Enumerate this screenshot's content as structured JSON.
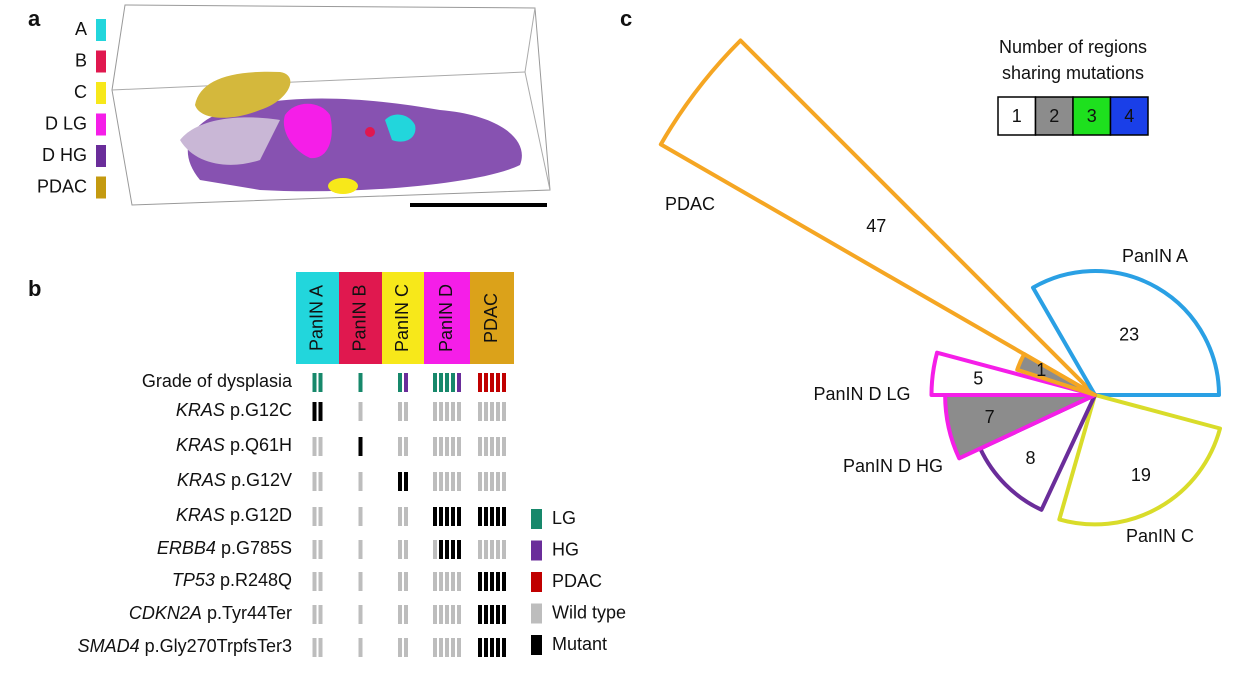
{
  "panel_a": {
    "label": "a",
    "legend": [
      {
        "name": "A",
        "color": "#22d6dc"
      },
      {
        "name": "B",
        "color": "#e0184f"
      },
      {
        "name": "C",
        "color": "#f7e81a"
      },
      {
        "name": "D LG",
        "color": "#f51ee8"
      },
      {
        "name": "D HG",
        "color": "#6a2d9a"
      },
      {
        "name": "PDAC",
        "color": "#c49a10"
      }
    ]
  },
  "panel_b": {
    "label": "b",
    "columns": [
      {
        "name": "PanIN A",
        "color": "#22d6dc"
      },
      {
        "name": "PanIN B",
        "color": "#e0184f"
      },
      {
        "name": "PanIN C",
        "color": "#f7e81a"
      },
      {
        "name": "PanIN D",
        "color": "#f51ee8"
      },
      {
        "name": "PDAC",
        "color": "#dba21a"
      }
    ],
    "grade_row": {
      "label": "Grade of dysplasia",
      "grades": [
        [
          "LG",
          "LG"
        ],
        [
          "LG"
        ],
        [
          "LG",
          "HG"
        ],
        [
          "LG",
          "LG",
          "LG",
          "LG",
          "HG"
        ],
        [
          "PDAC",
          "PDAC",
          "PDAC",
          "PDAC",
          "PDAC"
        ]
      ]
    },
    "rows": [
      {
        "gene": "KRAS",
        "variant": "p.G12C",
        "status": [
          [
            1,
            1
          ],
          [
            0
          ],
          [
            0,
            0
          ],
          [
            0,
            0,
            0,
            0,
            0
          ],
          [
            0,
            0,
            0,
            0,
            0
          ]
        ]
      },
      {
        "gene": "KRAS",
        "variant": "p.Q61H",
        "status": [
          [
            0,
            0
          ],
          [
            1
          ],
          [
            0,
            0
          ],
          [
            0,
            0,
            0,
            0,
            0
          ],
          [
            0,
            0,
            0,
            0,
            0
          ]
        ]
      },
      {
        "gene": "KRAS",
        "variant": "p.G12V",
        "status": [
          [
            0,
            0
          ],
          [
            0
          ],
          [
            1,
            1
          ],
          [
            0,
            0,
            0,
            0,
            0
          ],
          [
            0,
            0,
            0,
            0,
            0
          ]
        ]
      },
      {
        "gene": "KRAS",
        "variant": "p.G12D",
        "status": [
          [
            0,
            0
          ],
          [
            0
          ],
          [
            0,
            0
          ],
          [
            1,
            1,
            1,
            1,
            1
          ],
          [
            1,
            1,
            1,
            1,
            1
          ]
        ]
      },
      {
        "gene": "ERBB4",
        "variant": "p.G785S",
        "status": [
          [
            0,
            0
          ],
          [
            0
          ],
          [
            0,
            0
          ],
          [
            0,
            1,
            1,
            1,
            1
          ],
          [
            0,
            0,
            0,
            0,
            0
          ]
        ]
      },
      {
        "gene": "TP53",
        "variant": "p.R248Q",
        "status": [
          [
            0,
            0
          ],
          [
            0
          ],
          [
            0,
            0
          ],
          [
            0,
            0,
            0,
            0,
            0
          ],
          [
            1,
            1,
            1,
            1,
            1
          ]
        ]
      },
      {
        "gene": "CDKN2A",
        "variant": "p.Tyr44Ter",
        "status": [
          [
            0,
            0
          ],
          [
            0
          ],
          [
            0,
            0
          ],
          [
            0,
            0,
            0,
            0,
            0
          ],
          [
            1,
            1,
            1,
            1,
            1
          ]
        ]
      },
      {
        "gene": "SMAD4",
        "variant": "p.Gly270TrpfsTer3",
        "status": [
          [
            0,
            0
          ],
          [
            0
          ],
          [
            0,
            0
          ],
          [
            0,
            0,
            0,
            0,
            0
          ],
          [
            1,
            1,
            1,
            1,
            1
          ]
        ]
      }
    ],
    "legend": [
      {
        "name": "LG",
        "color": "#17886b"
      },
      {
        "name": "HG",
        "color": "#6a2d9a"
      },
      {
        "name": "PDAC",
        "color": "#c00000"
      },
      {
        "name": "Wild type",
        "color": "#bdbdbd"
      },
      {
        "name": "Mutant",
        "color": "#000000"
      }
    ]
  },
  "panel_c": {
    "label": "c",
    "legend_title": [
      "Number of regions",
      "sharing mutations"
    ],
    "legend": [
      {
        "value": 1,
        "color": "#ffffff",
        "text_color": "#000000"
      },
      {
        "value": 2,
        "color": "#8c8c8c",
        "text_color": "#ffffff"
      },
      {
        "value": 3,
        "color": "#1ee01e",
        "text_color": "#000000"
      },
      {
        "value": 4,
        "color": "#1a3fe8",
        "text_color": "#ffffff"
      }
    ],
    "wedges": [
      {
        "name": "PanIN A",
        "value": 23,
        "color": "#2aa0e4",
        "fill": "#ffffff"
      },
      {
        "name": "PDAC",
        "value": 47,
        "color": "#f5a623",
        "fill": "#ffffff"
      },
      {
        "value": 1,
        "color": "#f5a623",
        "fill": "#8c8c8c"
      },
      {
        "name": "PanIN D LG",
        "value": 5,
        "color": "#f51ee8",
        "fill": "#ffffff"
      },
      {
        "value": 7,
        "color": "#f51ee8",
        "fill": "#8c8c8c"
      },
      {
        "name": "PanIN D HG",
        "value": 8,
        "color": "#6a2d9a",
        "fill": "#ffffff"
      },
      {
        "name": "PanIN C",
        "value": 19,
        "color": "#d9dc2a",
        "fill": "#ffffff"
      }
    ]
  }
}
